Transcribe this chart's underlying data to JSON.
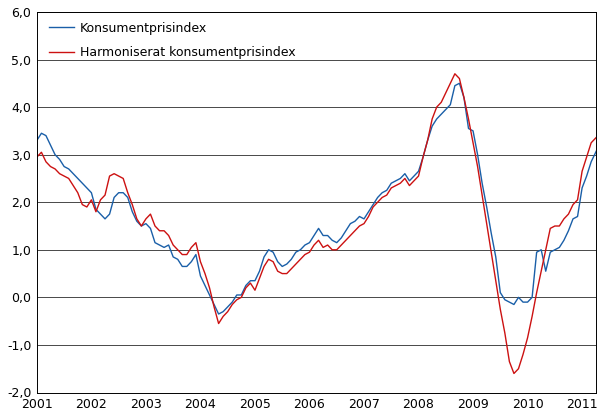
{
  "kpi_label": "Konsumentprisindex",
  "hicp_label": "Harmoniserat konsumentprisindex",
  "kpi_color": "#1a5fa8",
  "hicp_color": "#cc1111",
  "ylim": [
    -2.0,
    6.0
  ],
  "yticks": [
    -2.0,
    -1.0,
    0.0,
    1.0,
    2.0,
    3.0,
    4.0,
    5.0,
    6.0
  ],
  "ytick_labels": [
    "-2,0",
    "-1,0",
    "0,0",
    "1,0",
    "2,0",
    "3,0",
    "4,0",
    "5,0",
    "6,0"
  ],
  "xlim_start": 2001.0,
  "xlim_end": 2011.25,
  "xtick_positions": [
    2001,
    2002,
    2003,
    2004,
    2005,
    2006,
    2007,
    2008,
    2009,
    2010,
    2011
  ],
  "grid_color": "#000000",
  "grid_linewidth": 0.5,
  "background_color": "#ffffff",
  "line_linewidth": 1.0,
  "kpi_data": [
    3.3,
    3.45,
    3.4,
    3.2,
    3.0,
    2.9,
    2.75,
    2.7,
    2.6,
    2.5,
    2.4,
    2.3,
    2.2,
    1.85,
    1.75,
    1.65,
    1.75,
    2.1,
    2.2,
    2.2,
    2.1,
    1.8,
    1.6,
    1.5,
    1.55,
    1.45,
    1.15,
    1.1,
    1.05,
    1.1,
    0.85,
    0.8,
    0.65,
    0.65,
    0.75,
    0.9,
    0.45,
    0.25,
    0.05,
    -0.15,
    -0.35,
    -0.3,
    -0.2,
    -0.1,
    0.05,
    0.05,
    0.25,
    0.35,
    0.35,
    0.55,
    0.85,
    1.0,
    0.95,
    0.75,
    0.65,
    0.7,
    0.8,
    0.95,
    1.0,
    1.1,
    1.15,
    1.3,
    1.45,
    1.3,
    1.3,
    1.2,
    1.15,
    1.25,
    1.4,
    1.55,
    1.6,
    1.7,
    1.65,
    1.8,
    1.95,
    2.1,
    2.2,
    2.25,
    2.4,
    2.45,
    2.5,
    2.6,
    2.45,
    2.55,
    2.65,
    2.95,
    3.3,
    3.6,
    3.75,
    3.85,
    3.95,
    4.05,
    4.45,
    4.5,
    4.2,
    3.55,
    3.5,
    3.0,
    2.4,
    1.9,
    1.35,
    0.85,
    0.1,
    -0.05,
    -0.1,
    -0.15,
    0.0,
    -0.1,
    -0.1,
    0.0,
    0.95,
    1.0,
    0.55,
    0.95,
    1.0,
    1.05,
    1.2,
    1.4,
    1.65,
    1.7,
    2.3,
    2.55,
    2.85,
    3.05,
    3.25,
    3.35
  ],
  "hicp_data": [
    2.95,
    3.05,
    2.85,
    2.75,
    2.7,
    2.6,
    2.55,
    2.5,
    2.35,
    2.2,
    1.95,
    1.9,
    2.05,
    1.8,
    2.05,
    2.15,
    2.55,
    2.6,
    2.55,
    2.5,
    2.2,
    1.95,
    1.65,
    1.5,
    1.65,
    1.75,
    1.5,
    1.4,
    1.4,
    1.3,
    1.1,
    1.0,
    0.9,
    0.9,
    1.05,
    1.15,
    0.75,
    0.5,
    0.2,
    -0.2,
    -0.55,
    -0.4,
    -0.3,
    -0.15,
    -0.05,
    0.0,
    0.2,
    0.3,
    0.15,
    0.4,
    0.65,
    0.8,
    0.75,
    0.55,
    0.5,
    0.5,
    0.6,
    0.7,
    0.8,
    0.9,
    0.95,
    1.1,
    1.2,
    1.05,
    1.1,
    1.0,
    1.0,
    1.1,
    1.2,
    1.3,
    1.4,
    1.5,
    1.55,
    1.7,
    1.9,
    2.0,
    2.1,
    2.15,
    2.3,
    2.35,
    2.4,
    2.5,
    2.35,
    2.45,
    2.55,
    2.95,
    3.3,
    3.75,
    4.0,
    4.1,
    4.3,
    4.5,
    4.7,
    4.6,
    4.2,
    3.75,
    3.25,
    2.75,
    2.15,
    1.55,
    0.95,
    0.35,
    -0.25,
    -0.75,
    -1.35,
    -1.6,
    -1.5,
    -1.2,
    -0.85,
    -0.4,
    0.1,
    0.55,
    1.0,
    1.45,
    1.5,
    1.5,
    1.65,
    1.75,
    1.95,
    2.05,
    2.65,
    2.95,
    3.25,
    3.35,
    3.45,
    3.4
  ]
}
